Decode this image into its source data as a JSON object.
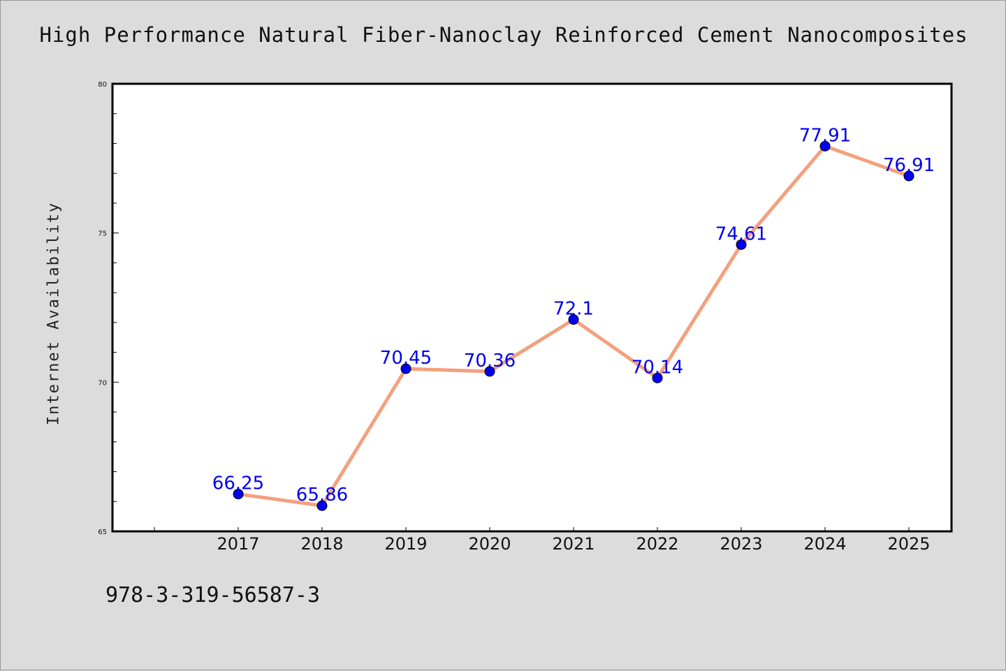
{
  "chart_data": {
    "type": "line",
    "title": "High Performance Natural Fiber-Nanoclay Reinforced Cement Nanocomposites",
    "xlabel": "",
    "ylabel": "Internet Availability",
    "categories": [
      "2017",
      "2018",
      "2019",
      "2020",
      "2021",
      "2022",
      "2023",
      "2024",
      "2025"
    ],
    "series": [
      {
        "values": [
          66.25,
          65.86,
          70.45,
          70.36,
          72.1,
          70.14,
          74.61,
          77.91,
          76.91
        ],
        "labels": [
          "66.25",
          "65.86",
          "70.45",
          "70.36",
          "72.1",
          "70.14",
          "74.61",
          "77.91",
          "76.91"
        ],
        "line_color": "#f4a07e",
        "marker_color": "#0000ee"
      }
    ],
    "ylim": [
      65,
      80
    ],
    "yticks": [
      "65",
      "70",
      "75",
      "80"
    ],
    "grid": false,
    "legend": "none"
  },
  "footer": {
    "isbn": "978-3-319-56587-3"
  }
}
